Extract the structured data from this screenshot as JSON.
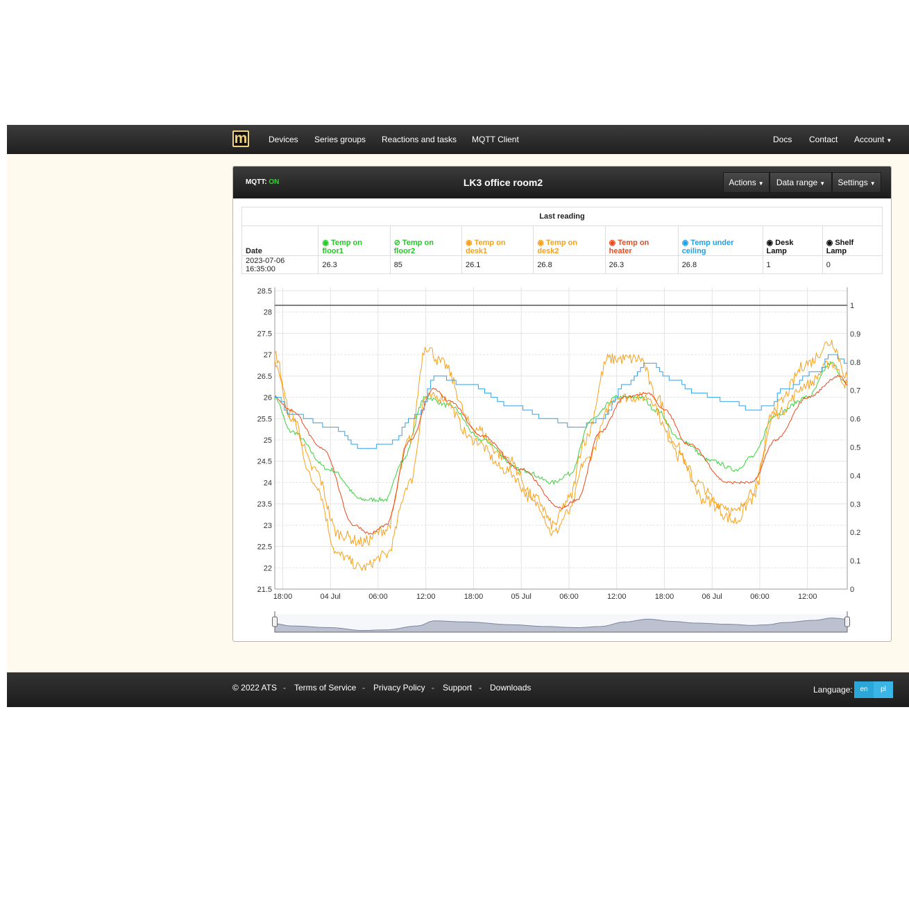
{
  "navbar": {
    "logo": "m",
    "left_links": [
      "Devices",
      "Series groups",
      "Reactions and tasks",
      "MQTT Client"
    ],
    "right_links": [
      "Docs",
      "Contact",
      "Account"
    ]
  },
  "panel": {
    "mqtt_label": "MQTT:",
    "mqtt_status": "ON",
    "title": "LK3 office room2",
    "buttons": [
      "Actions",
      "Data range",
      "Settings"
    ]
  },
  "table": {
    "caption": "Last reading",
    "date_header": "Date",
    "columns": [
      {
        "line1": "Temp on",
        "line2": "floor1",
        "color": "#22c922",
        "icon": "eye-icon"
      },
      {
        "line1": "Temp on",
        "line2": "floor2",
        "color": "#22c922",
        "icon": "eye-slash-icon"
      },
      {
        "line1": "Temp on",
        "line2": "desk1",
        "color": "#f5a11d",
        "icon": "eye-icon"
      },
      {
        "line1": "Temp on",
        "line2": "desk2",
        "color": "#f5a11d",
        "icon": "eye-icon"
      },
      {
        "line1": "Temp on",
        "line2": "heater",
        "color": "#e8491d",
        "icon": "eye-icon"
      },
      {
        "line1": "Temp under",
        "line2": "ceiling",
        "color": "#1e9fe6",
        "icon": "eye-icon"
      },
      {
        "line1": "Desk",
        "line2": "Lamp",
        "color": "#111111",
        "icon": "eye-icon"
      },
      {
        "line1": "Shelf",
        "line2": "Lamp",
        "color": "#111111",
        "icon": "eye-icon"
      }
    ],
    "row": {
      "date": "2023-07-06 16:35:00",
      "values": [
        "26.3",
        "85",
        "26.1",
        "26.8",
        "26.3",
        "26.8",
        "1",
        "0"
      ]
    }
  },
  "chart_data": {
    "type": "line",
    "x_tick_labels": [
      "18:00",
      "04 Jul",
      "06:00",
      "12:00",
      "18:00",
      "05 Jul",
      "06:00",
      "12:00",
      "18:00",
      "06 Jul",
      "06:00",
      "12:00"
    ],
    "y_left_ticks": [
      "28.5",
      "28",
      "27.5",
      "27",
      "26.5",
      "26",
      "25.5",
      "25",
      "24.5",
      "24",
      "23.5",
      "23",
      "22.5",
      "22",
      "21.5"
    ],
    "y_left_range": [
      21.5,
      28.5
    ],
    "y_right_ticks": [
      "1",
      "0.9",
      "0.8",
      "0.7",
      "0.6",
      "0.5",
      "0.4",
      "0.3",
      "0.2",
      "0.1",
      "0"
    ],
    "y_right_range": [
      0,
      1.0
    ],
    "x_range_hours": [
      -1,
      71
    ],
    "grid": true,
    "series": [
      {
        "name": "Temp on floor1",
        "color": "#3ccf3c",
        "noise": 0.05,
        "points": [
          [
            -1,
            26.0
          ],
          [
            1,
            25.2
          ],
          [
            6,
            24.3
          ],
          [
            10,
            23.6
          ],
          [
            13,
            23.6
          ],
          [
            15,
            24.5
          ],
          [
            18,
            26.0
          ],
          [
            21,
            25.8
          ],
          [
            25,
            25.0
          ],
          [
            30,
            24.3
          ],
          [
            34,
            24.0
          ],
          [
            36,
            24.2
          ],
          [
            39,
            25.5
          ],
          [
            42,
            26.0
          ],
          [
            45,
            26.0
          ],
          [
            47,
            25.7
          ],
          [
            50,
            25.0
          ],
          [
            54,
            24.5
          ],
          [
            57,
            24.3
          ],
          [
            59,
            24.6
          ],
          [
            62,
            25.6
          ],
          [
            66,
            26.0
          ],
          [
            69,
            26.8
          ],
          [
            71,
            26.3
          ]
        ]
      },
      {
        "name": "Temp on desk1",
        "color": "#f5a11d",
        "noise": 0.12,
        "points": [
          [
            -1,
            26.8
          ],
          [
            1,
            25.5
          ],
          [
            4,
            24.0
          ],
          [
            7,
            22.3
          ],
          [
            10,
            22.0
          ],
          [
            13,
            22.3
          ],
          [
            16,
            24.0
          ],
          [
            18,
            26.0
          ],
          [
            20,
            26.0
          ],
          [
            24,
            25.0
          ],
          [
            28,
            24.3
          ],
          [
            32,
            23.5
          ],
          [
            34,
            22.8
          ],
          [
            36,
            23.3
          ],
          [
            38,
            24.5
          ],
          [
            42,
            26.0
          ],
          [
            46,
            26.0
          ],
          [
            49,
            25.0
          ],
          [
            52,
            24.0
          ],
          [
            55,
            23.5
          ],
          [
            57,
            23.3
          ],
          [
            59,
            23.8
          ],
          [
            62,
            25.6
          ],
          [
            66,
            26.3
          ],
          [
            69,
            26.8
          ],
          [
            71,
            26.3
          ]
        ]
      },
      {
        "name": "Temp on desk2",
        "color": "#f5a11d",
        "noise": 0.14,
        "points": [
          [
            -1,
            27.0
          ],
          [
            1,
            25.6
          ],
          [
            4,
            24.3
          ],
          [
            7,
            22.8
          ],
          [
            10,
            22.6
          ],
          [
            13,
            22.9
          ],
          [
            16,
            25.0
          ],
          [
            18,
            27.2
          ],
          [
            20,
            26.8
          ],
          [
            24,
            25.3
          ],
          [
            28,
            24.6
          ],
          [
            32,
            23.6
          ],
          [
            34,
            23.0
          ],
          [
            36,
            23.6
          ],
          [
            38,
            25.0
          ],
          [
            41,
            26.9
          ],
          [
            45,
            26.9
          ],
          [
            47,
            26.0
          ],
          [
            50,
            24.6
          ],
          [
            53,
            23.6
          ],
          [
            57,
            23.1
          ],
          [
            59,
            23.6
          ],
          [
            62,
            25.8
          ],
          [
            66,
            26.8
          ],
          [
            69,
            27.3
          ],
          [
            71,
            26.5
          ]
        ]
      },
      {
        "name": "Temp on heater",
        "color": "#e8491d",
        "noise": 0.03,
        "points": [
          [
            -1,
            26.0
          ],
          [
            1,
            25.7
          ],
          [
            5,
            24.8
          ],
          [
            9,
            23.0
          ],
          [
            11,
            22.8
          ],
          [
            13,
            23.0
          ],
          [
            16,
            25.0
          ],
          [
            19,
            26.2
          ],
          [
            21,
            25.9
          ],
          [
            25,
            25.1
          ],
          [
            30,
            24.3
          ],
          [
            35,
            23.4
          ],
          [
            37,
            23.6
          ],
          [
            40,
            25.2
          ],
          [
            43,
            26.0
          ],
          [
            46,
            26.1
          ],
          [
            48,
            25.7
          ],
          [
            51,
            24.9
          ],
          [
            56,
            24.0
          ],
          [
            59,
            24.0
          ],
          [
            62,
            25.0
          ],
          [
            66,
            26.0
          ],
          [
            70,
            26.5
          ],
          [
            71,
            26.3
          ]
        ]
      },
      {
        "name": "Temp under ceiling",
        "color": "#2ba3ec",
        "noise": 0,
        "points": [
          [
            -1,
            26.0
          ],
          [
            1,
            25.6
          ],
          [
            6,
            25.3
          ],
          [
            10,
            24.8
          ],
          [
            13,
            24.9
          ],
          [
            17,
            25.6
          ],
          [
            19,
            26.5
          ],
          [
            23,
            26.3
          ],
          [
            29,
            25.8
          ],
          [
            33,
            25.5
          ],
          [
            37,
            25.3
          ],
          [
            40,
            25.5
          ],
          [
            43,
            26.3
          ],
          [
            46,
            26.8
          ],
          [
            49,
            26.4
          ],
          [
            52,
            26.1
          ],
          [
            56,
            25.9
          ],
          [
            59,
            25.7
          ],
          [
            61,
            25.8
          ],
          [
            63,
            26.2
          ],
          [
            67,
            26.6
          ],
          [
            69,
            27.0
          ],
          [
            71,
            26.8
          ]
        ]
      },
      {
        "name": "Desk Lamp",
        "color": "#555555",
        "noise": 0,
        "axis": "right",
        "points": [
          [
            -1,
            1.0
          ],
          [
            71,
            1.0
          ]
        ]
      }
    ]
  },
  "footer": {
    "copyright": "© 2022 ATS",
    "links": [
      "Terms of Service",
      "Privacy Policy",
      "Support",
      "Downloads"
    ],
    "separator": "-",
    "language_label": "Language:",
    "languages": [
      "en",
      "pl"
    ]
  }
}
